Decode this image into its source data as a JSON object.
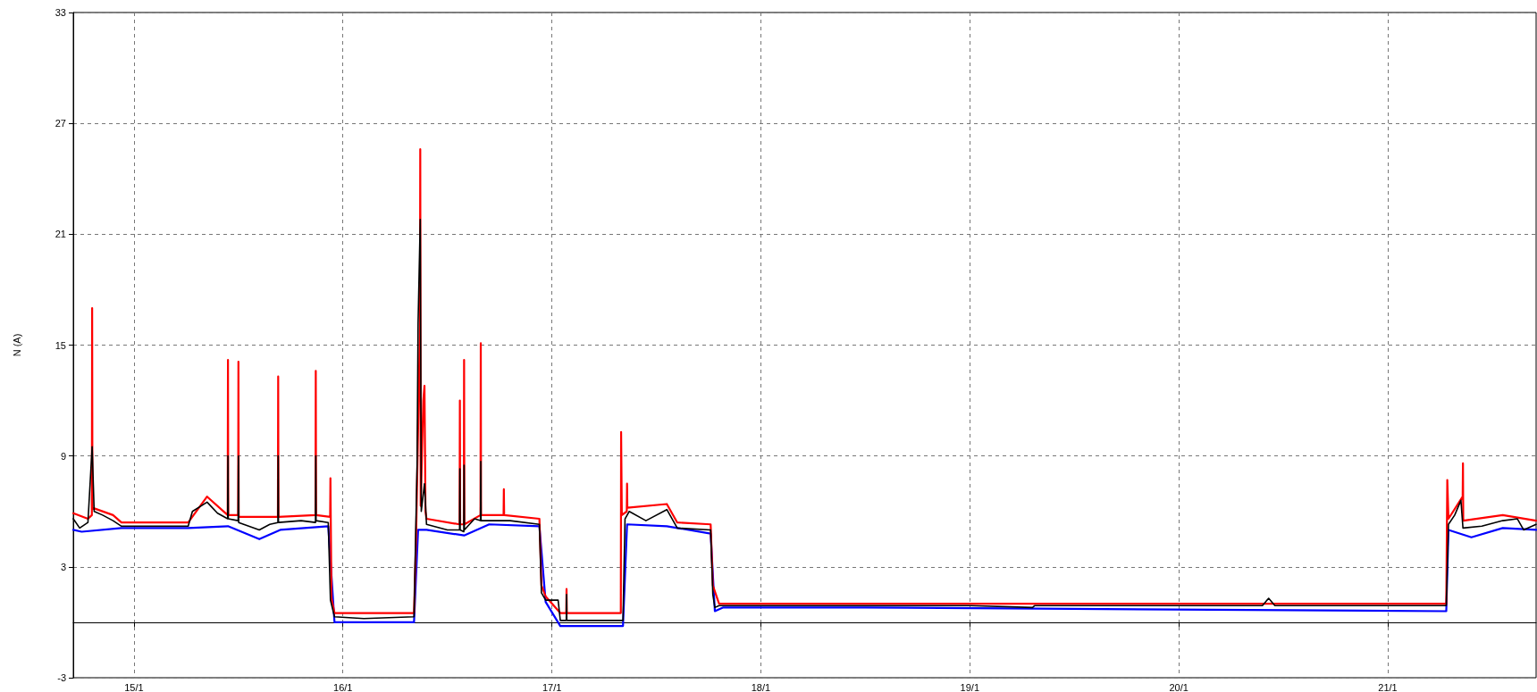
{
  "chart_data": {
    "type": "line",
    "ylabel": "N (A)",
    "xlim": [
      "--01-14T17:02",
      "--01-21T17:02"
    ],
    "xticks": [
      {
        "value": "--01-15",
        "label": "15/1"
      },
      {
        "value": "--01-16",
        "label": "16/1"
      },
      {
        "value": "--01-17",
        "label": "17/1"
      },
      {
        "value": "--01-18",
        "label": "18/1"
      },
      {
        "value": "--01-19",
        "label": "19/1"
      },
      {
        "value": "--01-20",
        "label": "20/1"
      },
      {
        "value": "--01-21",
        "label": "21/1"
      }
    ],
    "ylim": [
      -3,
      33
    ],
    "yticks": [
      -3,
      3,
      9,
      15,
      21,
      27,
      33
    ],
    "grid": true,
    "marker": "none",
    "line_style": "solid",
    "series": [
      {
        "color": "#0000ff",
        "x": [
          "--01-14T17:02",
          "--01-14T18:00",
          "--01-14T22:34",
          "--01-15T06:14",
          "--01-15T10:48",
          "--01-15T14:24",
          "--01-15T16:48",
          "--01-15T22:19",
          "--01-15T23:02",
          "--01-16T08:10",
          "--01-16T08:38",
          "--01-16T09:36",
          "--01-16T13:55",
          "--01-16T16:48",
          "--01-16T22:34",
          "--01-16T23:17",
          "--01-17T00:58",
          "--01-17T08:10",
          "--01-17T08:38",
          "--01-17T13:12",
          "--01-17T18:14",
          "--01-17T18:43",
          "--01-17T19:41",
          "--01-18T12:00",
          "--01-21T06:43",
          "--01-21T06:58",
          "--01-21T09:36",
          "--01-21T13:12",
          "--01-21T17:02"
        ],
        "values": [
          5.0,
          4.9,
          5.1,
          5.1,
          5.2,
          4.5,
          5.0,
          5.2,
          0.0,
          0.0,
          5.0,
          5.0,
          4.7,
          5.3,
          5.2,
          1.1,
          -0.2,
          -0.2,
          5.3,
          5.2,
          4.8,
          0.6,
          0.8,
          0.8,
          0.6,
          5.0,
          4.6,
          5.1,
          5.0
        ]
      },
      {
        "color": "#ff0000",
        "x": [
          "--01-14T17:02",
          "--01-14T18:43",
          "--01-14T19:10",
          "--01-14T19:12",
          "--01-14T19:14",
          "--01-14T21:36",
          "--01-14T22:34",
          "--01-15T06:14",
          "--01-15T08:24",
          "--01-15T10:46",
          "--01-15T10:48",
          "--01-15T10:50",
          "--01-15T11:58",
          "--01-15T12:00",
          "--01-15T12:02",
          "--01-15T16:32",
          "--01-15T16:34",
          "--01-15T16:36",
          "--01-15T20:51",
          "--01-15T20:53",
          "--01-15T20:55",
          "--01-15T22:32",
          "--01-15T22:34",
          "--01-15T22:41",
          "--01-15T23:02",
          "--01-16T08:10",
          "--01-16T08:24",
          "--01-16T08:51",
          "--01-16T08:53",
          "--01-16T08:56",
          "--01-16T09:14",
          "--01-16T09:22",
          "--01-16T09:29",
          "--01-16T09:36",
          "--01-16T13:24",
          "--01-16T13:26",
          "--01-16T13:28",
          "--01-16T13:53",
          "--01-16T13:55",
          "--01-16T13:57",
          "--01-16T15:48",
          "--01-16T15:50",
          "--01-16T15:52",
          "--01-16T18:27",
          "--01-16T18:29",
          "--01-16T18:31",
          "--01-16T22:34",
          "--01-16T22:48",
          "--01-16T23:17",
          "--01-17T00:58",
          "--01-17T01:39",
          "--01-17T01:41",
          "--01-17T01:43",
          "--01-17T07:55",
          "--01-17T07:57",
          "--01-17T08:02",
          "--01-17T08:36",
          "--01-17T08:38",
          "--01-17T08:40",
          "--01-17T13:12",
          "--01-17T14:24",
          "--01-17T18:14",
          "--01-17T18:29",
          "--01-17T19:12",
          "--01-21T06:43",
          "--01-21T06:50",
          "--01-21T06:58",
          "--01-21T08:36",
          "--01-21T08:38",
          "--01-21T08:40",
          "--01-21T13:12",
          "--01-21T17:02"
        ],
        "values": [
          5.9,
          5.6,
          5.8,
          17.0,
          6.2,
          5.8,
          5.4,
          5.4,
          6.8,
          5.8,
          14.2,
          5.8,
          5.8,
          14.1,
          5.7,
          5.7,
          13.3,
          5.7,
          5.8,
          13.6,
          5.8,
          5.7,
          7.8,
          1.3,
          0.5,
          0.5,
          4.5,
          16.0,
          25.6,
          6.3,
          12.0,
          12.8,
          6.0,
          5.6,
          5.3,
          12.0,
          5.3,
          5.3,
          14.2,
          5.3,
          5.8,
          15.1,
          5.8,
          5.8,
          7.2,
          5.8,
          5.6,
          2.0,
          1.4,
          0.5,
          0.5,
          1.8,
          0.5,
          0.5,
          10.3,
          5.8,
          6.0,
          7.5,
          6.2,
          6.4,
          5.4,
          5.3,
          2.0,
          1.0,
          1.0,
          7.7,
          5.6,
          6.8,
          8.6,
          5.5,
          5.8,
          5.5
        ]
      },
      {
        "color": "#000000",
        "x": [
          "--01-14T17:02",
          "--01-14T17:46",
          "--01-14T18:43",
          "--01-14T19:12",
          "--01-14T19:26",
          "--01-14T20:24",
          "--01-14T21:36",
          "--01-14T22:34",
          "--01-15T02:24",
          "--01-15T06:14",
          "--01-15T06:43",
          "--01-15T08:24",
          "--01-15T09:36",
          "--01-15T10:46",
          "--01-15T10:48",
          "--01-15T10:50",
          "--01-15T11:58",
          "--01-15T12:00",
          "--01-15T12:02",
          "--01-15T14:24",
          "--01-15T15:36",
          "--01-15T16:32",
          "--01-15T16:34",
          "--01-15T16:36",
          "--01-15T19:12",
          "--01-15T20:51",
          "--01-15T20:53",
          "--01-15T20:55",
          "--01-15T22:19",
          "--01-15T22:34",
          "--01-15T23:02",
          "--01-16T02:24",
          "--01-16T08:10",
          "--01-16T08:31",
          "--01-16T08:38",
          "--01-16T08:53",
          "--01-16T09:00",
          "--01-16T09:22",
          "--01-16T09:36",
          "--01-16T12:00",
          "--01-16T13:24",
          "--01-16T13:26",
          "--01-16T13:28",
          "--01-16T13:53",
          "--01-16T13:55",
          "--01-16T13:57",
          "--01-16T15:07",
          "--01-16T15:48",
          "--01-16T15:50",
          "--01-16T15:52",
          "--01-16T19:12",
          "--01-16T22:34",
          "--01-16T22:48",
          "--01-16T23:17",
          "--01-17T00:43",
          "--01-17T00:58",
          "--01-17T01:39",
          "--01-17T01:41",
          "--01-17T01:43",
          "--01-17T08:10",
          "--01-17T08:24",
          "--01-17T08:53",
          "--01-17T10:48",
          "--01-17T13:12",
          "--01-17T14:24",
          "--01-17T18:14",
          "--01-17T18:29",
          "--01-17T18:43",
          "--01-17T19:12",
          "--01-18T12:00",
          "--01-19T00:00",
          "--01-19T07:12",
          "--01-19T07:26",
          "--01-20T00:00",
          "--01-20T09:36",
          "--01-20T10:19",
          "--01-20T11:02",
          "--01-21T00:00",
          "--01-21T06:43",
          "--01-21T06:58",
          "--01-21T07:41",
          "--01-21T08:24",
          "--01-21T08:38",
          "--01-21T10:48",
          "--01-21T13:12",
          "--01-21T14:53",
          "--01-21T15:36",
          "--01-21T17:02"
        ],
        "values": [
          5.6,
          5.1,
          5.4,
          9.5,
          6.0,
          5.8,
          5.5,
          5.2,
          5.2,
          5.2,
          6.0,
          6.5,
          5.9,
          5.6,
          9.0,
          5.6,
          5.5,
          9.0,
          5.4,
          5.0,
          5.3,
          5.4,
          9.0,
          5.4,
          5.5,
          5.4,
          9.0,
          5.5,
          5.4,
          1.2,
          0.3,
          0.2,
          0.3,
          8.5,
          16.2,
          21.8,
          6.0,
          7.5,
          5.3,
          5.0,
          5.0,
          8.3,
          5.0,
          4.9,
          8.5,
          5.0,
          5.6,
          5.5,
          8.7,
          5.5,
          5.5,
          5.3,
          1.6,
          1.2,
          1.2,
          0.1,
          0.1,
          1.5,
          0.1,
          0.1,
          5.6,
          6.0,
          5.5,
          6.1,
          5.1,
          5.0,
          1.5,
          0.8,
          0.9,
          0.9,
          0.9,
          0.8,
          0.9,
          0.9,
          0.9,
          1.3,
          0.9,
          0.9,
          0.9,
          5.3,
          5.8,
          6.6,
          5.1,
          5.2,
          5.5,
          5.6,
          5.0,
          5.3
        ]
      }
    ]
  }
}
